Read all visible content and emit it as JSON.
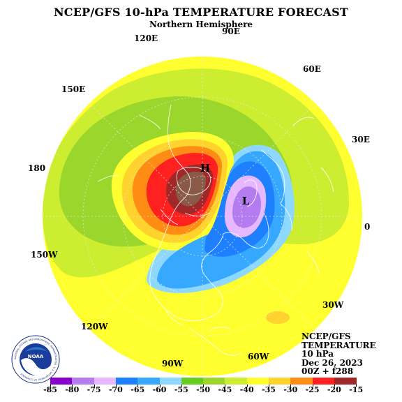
{
  "title": "NCEP/GFS 10-hPa TEMPERATURE FORECAST",
  "subtitle": "Northern Hemisphere",
  "longitude_labels": [
    "90E",
    "120E",
    "60E",
    "150E",
    "30E",
    "180",
    "0",
    "150W",
    "30W",
    "120W",
    "60W",
    "90W"
  ],
  "pressure_center_labels": {
    "high": "H",
    "low": "L"
  },
  "info": {
    "line1": "NCEP/GFS",
    "line2": "TEMPERATURE",
    "line3": "10 hPa",
    "line4": "Dec 26, 2023",
    "line5": "00Z + f288"
  },
  "logo_text": {
    "center": "NOAA",
    "ring": "NATIONAL OCEANIC AND ATMOSPHERIC ADMINISTRATION · U.S. DEPARTMENT OF COMMERCE ·"
  },
  "color_scale": {
    "labels": [
      "-85",
      "-80",
      "-75",
      "-70",
      "-65",
      "-60",
      "-55",
      "-50",
      "-45",
      "-40",
      "-35",
      "-30",
      "-25",
      "-20",
      "-15"
    ],
    "colors": [
      "#8800cc",
      "#b57cf0",
      "#e6b8ff",
      "#1e7fff",
      "#36a8ff",
      "#8ed8ff",
      "#68cc20",
      "#9bd62c",
      "#cdee30",
      "#ffff30",
      "#ffd22e",
      "#ff8c14",
      "#ff2020",
      "#a02828"
    ]
  }
}
